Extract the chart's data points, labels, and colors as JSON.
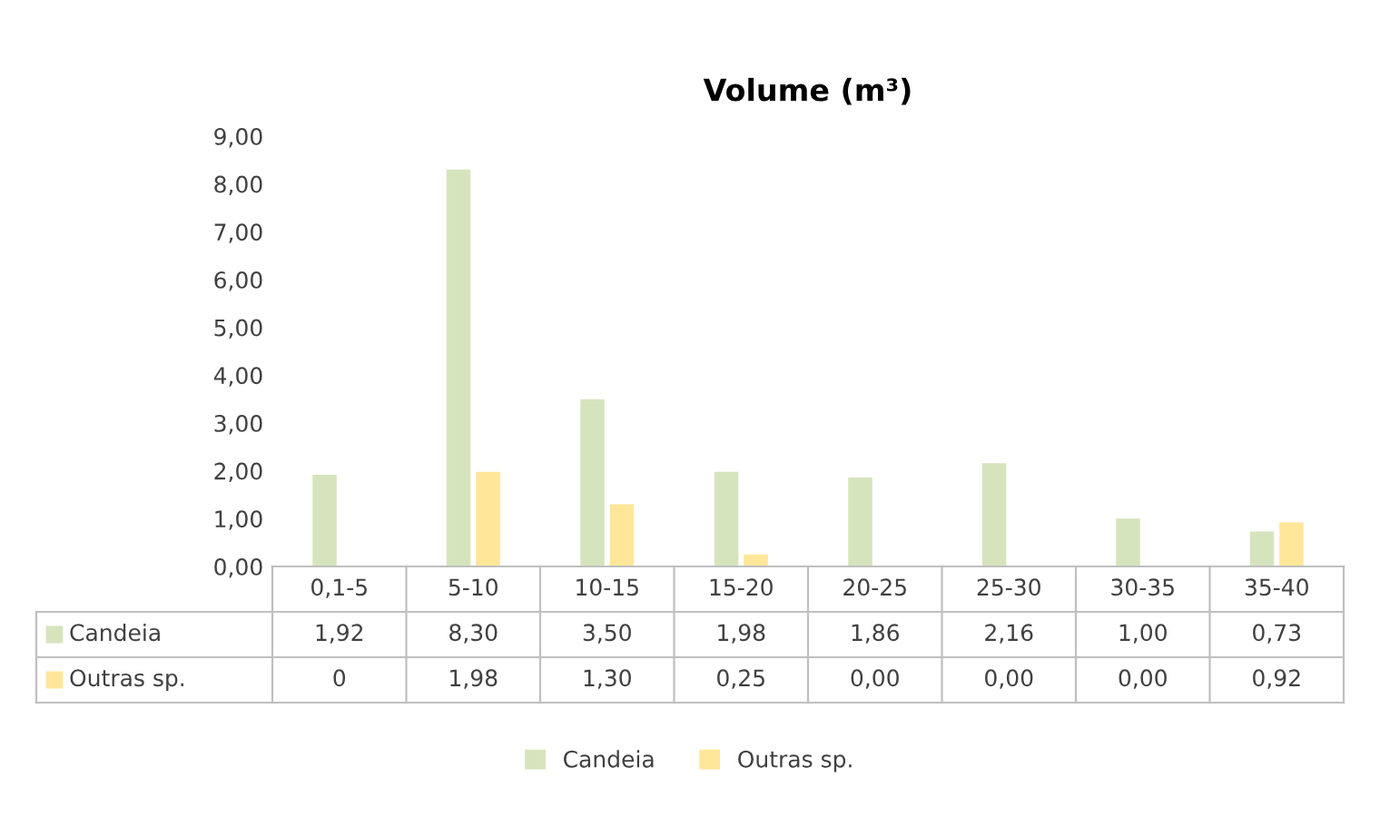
{
  "chart_data": {
    "type": "bar",
    "title": "Volume (m³)",
    "categories": [
      "0,1-5",
      "5-10",
      "10-15",
      "15-20",
      "20-25",
      "25-30",
      "30-35",
      "35-40"
    ],
    "series": [
      {
        "name": "Candeia",
        "color": "#d6e4bd",
        "values": [
          1.92,
          8.3,
          3.5,
          1.98,
          1.86,
          2.16,
          1.0,
          0.73
        ],
        "value_labels": [
          "1,92",
          "8,30",
          "3,50",
          "1,98",
          "1,86",
          "2,16",
          "1,00",
          "0,73"
        ]
      },
      {
        "name": "Outras sp.",
        "color": "#ffe699",
        "values": [
          0,
          1.98,
          1.3,
          0.25,
          0.0,
          0.0,
          0.0,
          0.92
        ],
        "value_labels": [
          "0",
          "1,98",
          "1,30",
          "0,25",
          "0,00",
          "0,00",
          "0,00",
          "0,92"
        ]
      }
    ],
    "ylim": [
      0,
      9
    ],
    "yticks": [
      {
        "value": 0,
        "label": "0,00"
      },
      {
        "value": 1,
        "label": "1,00"
      },
      {
        "value": 2,
        "label": "2,00"
      },
      {
        "value": 3,
        "label": "3,00"
      },
      {
        "value": 4,
        "label": "4,00"
      },
      {
        "value": 5,
        "label": "5,00"
      },
      {
        "value": 6,
        "label": "6,00"
      },
      {
        "value": 7,
        "label": "7,00"
      },
      {
        "value": 8,
        "label": "8,00"
      },
      {
        "value": 9,
        "label": "9,00"
      }
    ],
    "grid": false,
    "legend": "bottom"
  }
}
